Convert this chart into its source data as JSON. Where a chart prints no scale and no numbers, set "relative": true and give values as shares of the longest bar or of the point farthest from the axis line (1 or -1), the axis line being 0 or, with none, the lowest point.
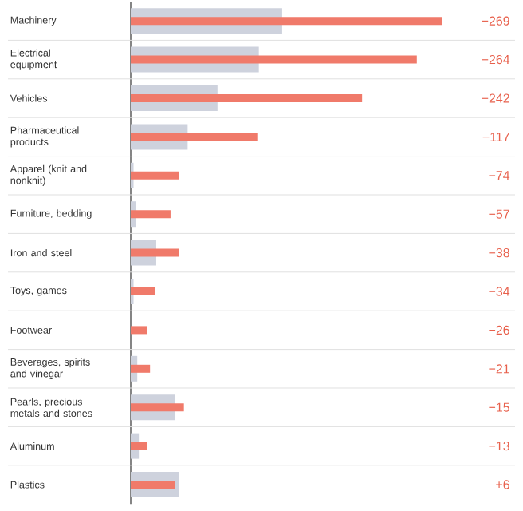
{
  "chart_data": {
    "type": "bar",
    "orientation": "horizontal",
    "relative": true,
    "categories": [
      "Machinery",
      "Electrical equipment",
      "Vehicles",
      "Pharmaceutical products",
      "Apparel (knit and nonknit)",
      "Furniture, bedding",
      "Iron and steel",
      "Toys, games",
      "Footwear",
      "Beverages, spirits and vinegar",
      "Pearls, precious metals and stones",
      "Aluminum",
      "Plastics"
    ],
    "series": [
      {
        "color": "#ced2dd",
        "values": [
          0.487,
          0.412,
          0.279,
          0.183,
          0.009,
          0.017,
          0.082,
          0.009,
          null,
          0.021,
          0.142,
          0.026,
          0.154
        ]
      },
      {
        "color": "#f07a6a",
        "values": [
          1,
          0.92,
          0.744,
          0.407,
          0.154,
          0.128,
          0.154,
          0.079,
          0.053,
          0.062,
          0.171,
          0.053,
          0.142
        ]
      }
    ],
    "annotations": [
      "−269",
      "−264",
      "−242",
      "−117",
      "−74",
      "−57",
      "−38",
      "−34",
      "−26",
      "−21",
      "−15",
      "−13",
      "+6"
    ]
  }
}
